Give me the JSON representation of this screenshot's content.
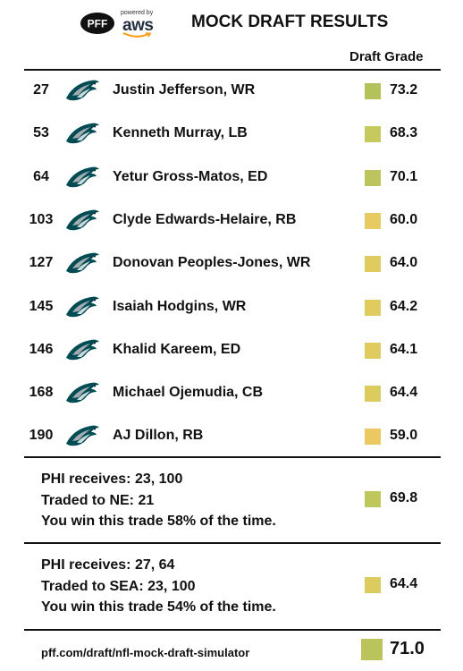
{
  "header": {
    "logo_text": "PFF",
    "powered_by": "powered by",
    "aws_text": "aws",
    "title": "MOCK DRAFT RESULTS",
    "grade_column": "Draft Grade"
  },
  "picks": [
    {
      "pick": "27",
      "player": "Justin Jefferson, WR",
      "grade": "73.2",
      "color": "#b5c25a"
    },
    {
      "pick": "53",
      "player": "Kenneth Murray, LB",
      "grade": "68.3",
      "color": "#c6c95d"
    },
    {
      "pick": "64",
      "player": "Yetur Gross-Matos, ED",
      "grade": "70.1",
      "color": "#bcc55b"
    },
    {
      "pick": "103",
      "player": "Clyde Edwards-Helaire, RB",
      "grade": "60.0",
      "color": "#e8cb60"
    },
    {
      "pick": "127",
      "player": "Donovan Peoples-Jones, WR",
      "grade": "64.0",
      "color": "#dfcb5f"
    },
    {
      "pick": "145",
      "player": "Isaiah Hodgins, WR",
      "grade": "64.2",
      "color": "#dfcb5f"
    },
    {
      "pick": "146",
      "player": "Khalid Kareem, ED",
      "grade": "64.1",
      "color": "#dfcb5f"
    },
    {
      "pick": "168",
      "player": "Michael Ojemudia, CB",
      "grade": "64.4",
      "color": "#dccb5e"
    },
    {
      "pick": "190",
      "player": "AJ Dillon, RB",
      "grade": "59.0",
      "color": "#ecc860"
    }
  ],
  "trades": [
    {
      "receives": "PHI receives: 23, 100",
      "traded": "Traded to NE: 21",
      "odds": "You win this trade 58% of the time.",
      "grade": "69.8",
      "color": "#bfc65b"
    },
    {
      "receives": "PHI receives: 27, 64",
      "traded": "Traded to SEA: 23, 100",
      "odds": "You win this trade 54% of the time.",
      "grade": "64.4",
      "color": "#dccb5e"
    }
  ],
  "footer": {
    "url": "pff.com/draft/nfl-mock-draft-simulator",
    "final_grade": "71.0",
    "final_color": "#bac45a"
  },
  "icons": {
    "team_logo": "eagles-logo-icon",
    "pff": "pff-logo-icon",
    "aws": "aws-logo-icon"
  }
}
